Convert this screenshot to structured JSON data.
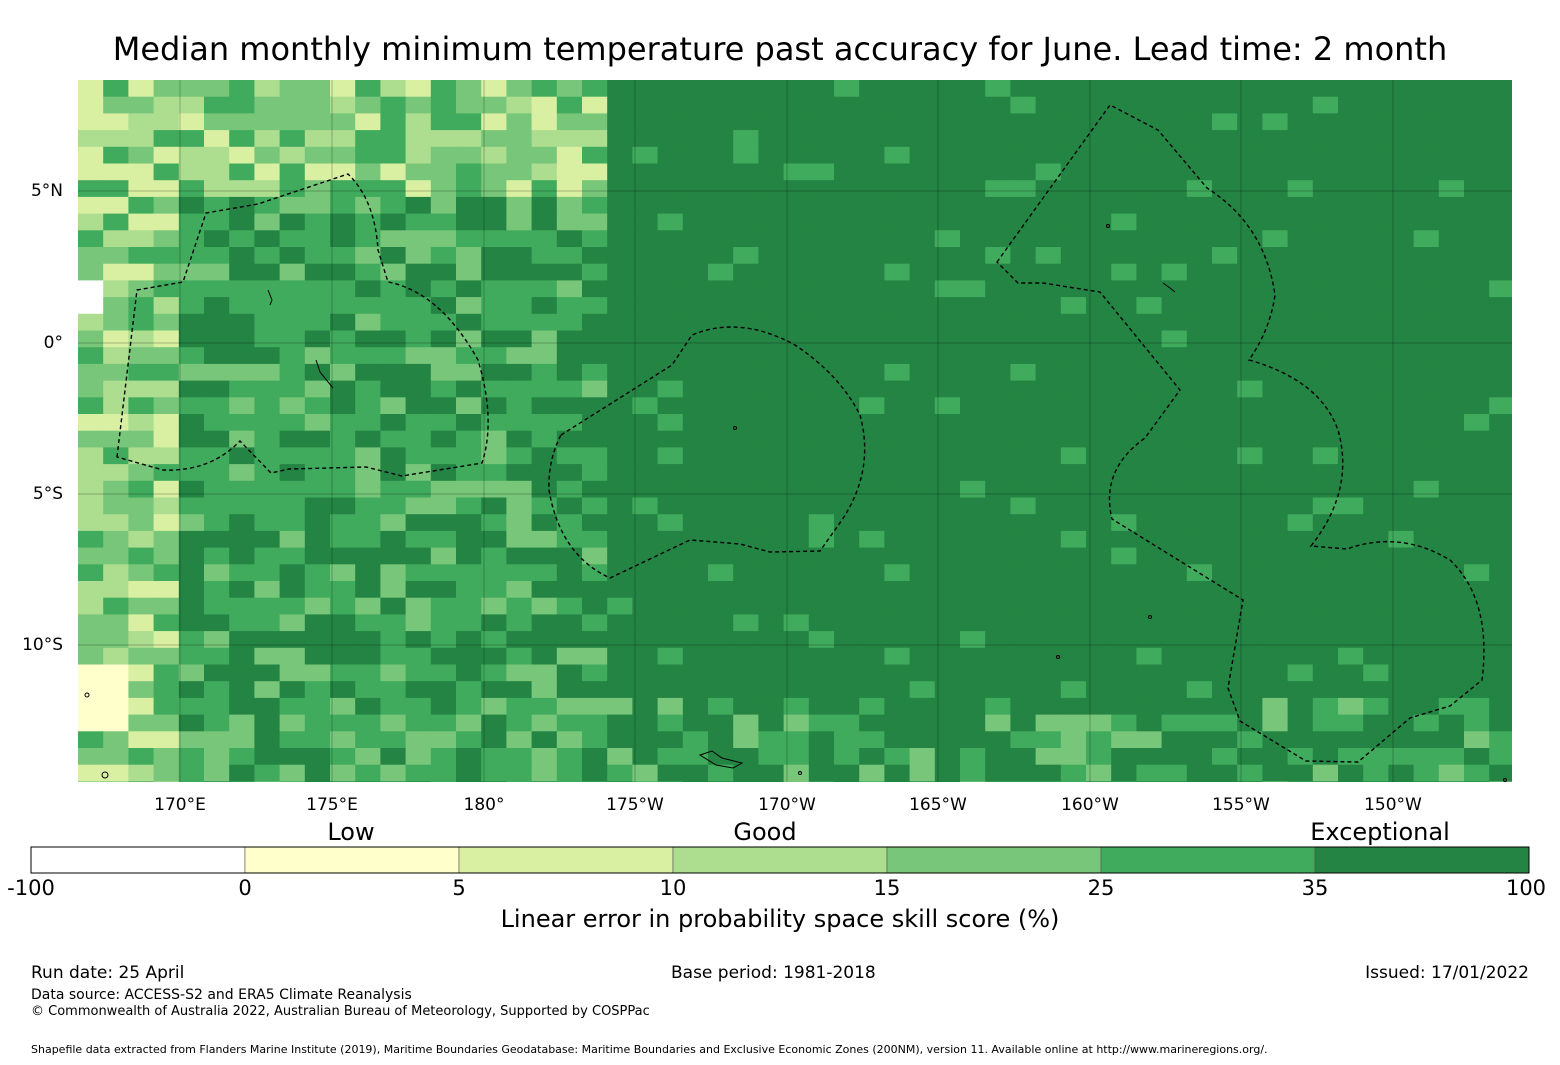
{
  "title": "Median monthly minimum temperature past accuracy for June. Lead time: 2 month",
  "map": {
    "lat_labels": [
      "5°N",
      "0°",
      "5°S",
      "10°S"
    ],
    "lon_labels": [
      "170°E",
      "175°E",
      "180°",
      "175°W",
      "170°W",
      "165°W",
      "160°W",
      "155°W",
      "150°W"
    ],
    "lon_range": [
      166.6,
      -146.1
    ],
    "lat_range": [
      8.6,
      -14.6
    ],
    "colors": {
      "c100_0": "#ffffff",
      "c0_5": "#ffffcc",
      "c5_10": "#d9f0a3",
      "c10_15": "#addd8e",
      "c15_25": "#78c679",
      "c25_35": "#41ab5d",
      "c35_100": "#238443"
    }
  },
  "colorbar": {
    "categories": [
      "Low",
      "Good",
      "Exceptional"
    ],
    "ticks": [
      "-100",
      "0",
      "5",
      "10",
      "15",
      "25",
      "35",
      "100"
    ],
    "bin_colors": [
      "#ffffff",
      "#ffffcc",
      "#d9f0a3",
      "#addd8e",
      "#78c679",
      "#41ab5d",
      "#238443"
    ],
    "title": "Linear error in probability space skill score (%)"
  },
  "footer": {
    "run_date": "Run date: 25 April",
    "base_period": "Base period: 1981-2018",
    "issued": "Issued: 17/01/2022",
    "data_source": "Data source: ACCESS-S2 and ERA5 Climate Reanalysis",
    "copyright": "© Commonwealth of Australia 2022, Australian Bureau of Meteorology, Supported by COSPPac",
    "shapefile": "Shapefile data extracted from Flanders Marine Institute (2019), Maritime Boundaries Geodatabase: Maritime Boundaries and Exclusive Economic Zones (200NM), version 11. Available online at http://www.marineregions.org/."
  }
}
